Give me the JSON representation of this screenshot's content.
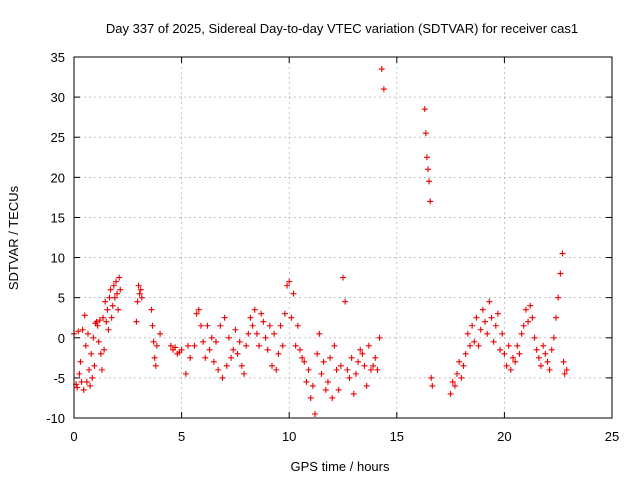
{
  "chart_data": {
    "type": "scatter",
    "title": "Day 337 of 2025, Sidereal Day-to-day VTEC variation (SDTVAR) for receiver cas1",
    "xlabel": "GPS time / hours",
    "ylabel": "SDTVAR / TECUs",
    "xlim": [
      0,
      25
    ],
    "ylim": [
      -10,
      35
    ],
    "xticks": [
      0,
      5,
      10,
      15,
      20,
      25
    ],
    "yticks": [
      -10,
      -5,
      0,
      5,
      10,
      15,
      20,
      25,
      30,
      35
    ],
    "grid": true,
    "marker": "plus",
    "color": "#ee0000",
    "series": [
      {
        "name": "SDTVAR",
        "x": [
          0.0,
          0.1,
          0.15,
          0.2,
          0.25,
          0.3,
          0.35,
          0.4,
          0.45,
          0.5,
          0.55,
          0.6,
          0.65,
          0.7,
          0.75,
          0.8,
          0.85,
          0.9,
          0.95,
          1.0,
          1.05,
          1.1,
          1.15,
          1.2,
          1.25,
          1.3,
          1.35,
          1.4,
          1.45,
          1.5,
          1.55,
          1.6,
          1.65,
          1.7,
          1.75,
          1.8,
          1.85,
          1.9,
          1.95,
          2.0,
          2.05,
          2.1,
          2.15,
          2.9,
          2.95,
          3.0,
          3.05,
          3.1,
          3.15,
          3.6,
          3.65,
          3.7,
          3.75,
          3.8,
          3.85,
          4.0,
          4.5,
          4.6,
          4.7,
          4.8,
          4.9,
          5.0,
          5.2,
          5.3,
          5.4,
          5.6,
          5.7,
          5.8,
          5.9,
          6.0,
          6.1,
          6.2,
          6.3,
          6.4,
          6.5,
          6.6,
          6.7,
          6.8,
          6.9,
          7.0,
          7.1,
          7.2,
          7.3,
          7.4,
          7.5,
          7.6,
          7.7,
          7.8,
          7.9,
          8.0,
          8.1,
          8.2,
          8.3,
          8.4,
          8.5,
          8.6,
          8.7,
          8.8,
          8.9,
          9.0,
          9.1,
          9.2,
          9.3,
          9.4,
          9.5,
          9.6,
          9.7,
          9.8,
          9.9,
          10.0,
          10.1,
          10.2,
          10.3,
          10.4,
          10.5,
          10.6,
          10.7,
          10.8,
          10.9,
          11.0,
          11.1,
          11.2,
          11.3,
          11.4,
          11.5,
          11.6,
          11.7,
          11.8,
          11.9,
          12.0,
          12.1,
          12.2,
          12.3,
          12.4,
          12.5,
          12.6,
          12.7,
          12.8,
          12.9,
          13.0,
          13.1,
          13.2,
          13.3,
          13.4,
          13.5,
          13.6,
          13.7,
          13.8,
          13.9,
          14.0,
          14.1,
          14.2,
          14.3,
          14.4,
          16.3,
          16.35,
          16.4,
          16.45,
          16.5,
          16.55,
          16.6,
          16.65,
          17.5,
          17.6,
          17.7,
          17.8,
          17.9,
          18.0,
          18.1,
          18.2,
          18.3,
          18.4,
          18.5,
          18.6,
          18.7,
          18.8,
          18.9,
          19.0,
          19.1,
          19.2,
          19.3,
          19.4,
          19.5,
          19.6,
          19.7,
          19.8,
          19.9,
          20.0,
          20.1,
          20.2,
          20.3,
          20.4,
          20.5,
          20.6,
          20.7,
          20.8,
          20.9,
          21.0,
          21.1,
          21.2,
          21.3,
          21.4,
          21.5,
          21.6,
          21.7,
          21.8,
          21.9,
          22.0,
          22.1,
          22.2,
          22.3,
          22.4,
          22.5,
          22.6,
          22.7,
          22.75,
          22.8,
          22.9
        ],
        "y": [
          0.5,
          -5.8,
          -6.2,
          0.8,
          -4.5,
          -3.0,
          -5.5,
          1.0,
          -6.5,
          2.8,
          -1.0,
          -5.5,
          0.5,
          -4.0,
          -6.0,
          -2.0,
          -5.0,
          0.0,
          -3.5,
          1.8,
          2.0,
          1.5,
          -0.5,
          2.2,
          -2.0,
          -4.0,
          2.5,
          -1.5,
          4.5,
          2.0,
          3.5,
          1.0,
          5.0,
          6.0,
          2.5,
          4.0,
          6.5,
          5.0,
          7.0,
          5.5,
          3.5,
          7.5,
          6.0,
          2.0,
          4.5,
          6.5,
          5.5,
          6.0,
          5.0,
          3.5,
          1.5,
          -0.5,
          -2.5,
          -3.5,
          -1.0,
          0.5,
          -1.0,
          -1.5,
          -1.2,
          -2.0,
          -1.8,
          -1.5,
          -4.5,
          -1.0,
          -2.5,
          -1.0,
          3.0,
          3.5,
          1.5,
          -0.5,
          -2.5,
          1.5,
          -1.5,
          0.0,
          -3.0,
          -0.5,
          -4.0,
          1.5,
          -5.0,
          2.5,
          -3.5,
          0.0,
          -2.5,
          -1.5,
          1.0,
          -2.0,
          -0.5,
          -3.5,
          -4.5,
          -1.0,
          0.5,
          2.5,
          1.5,
          3.5,
          0.5,
          -1.0,
          3.0,
          2.0,
          0.0,
          -1.5,
          1.5,
          -3.5,
          0.5,
          -4.0,
          -2.0,
          1.5,
          -1.0,
          3.0,
          6.5,
          7.0,
          2.5,
          5.5,
          -1.0,
          1.5,
          -1.5,
          -2.5,
          -3.0,
          -5.5,
          -4.0,
          -7.5,
          -6.0,
          -9.5,
          -2.0,
          0.5,
          -4.5,
          -3.0,
          -6.5,
          -5.5,
          -2.5,
          -7.5,
          -1.0,
          -4.0,
          -6.5,
          -3.5,
          7.5,
          4.5,
          -4.0,
          -5.0,
          -2.5,
          -7.0,
          -4.5,
          -3.0,
          -1.5,
          -2.0,
          -3.5,
          -6.0,
          -1.0,
          -4.0,
          -3.5,
          -2.5,
          -4.0,
          0.0,
          33.5,
          31.0,
          28.5,
          25.5,
          22.5,
          21.0,
          19.5,
          17.0,
          -5.0,
          -6.0,
          -7.0,
          -5.5,
          -6.0,
          -4.5,
          -3.0,
          -5.0,
          -3.5,
          -2.0,
          0.5,
          -1.0,
          1.5,
          -0.5,
          2.5,
          -1.0,
          1.0,
          3.5,
          2.0,
          0.5,
          4.5,
          2.5,
          -0.5,
          1.5,
          3.0,
          -1.5,
          0.5,
          -2.0,
          -3.5,
          -1.0,
          -4.0,
          -2.5,
          -3.0,
          -1.0,
          -2.0,
          0.5,
          1.5,
          3.5,
          2.0,
          4.0,
          2.5,
          0.0,
          -1.5,
          -2.5,
          -3.5,
          -1.0,
          -2.0,
          -3.0,
          -4.0,
          -1.5,
          0.0,
          2.5,
          5.0,
          8.0,
          10.5,
          -3.0,
          -4.5,
          -4.0
        ]
      }
    ]
  }
}
